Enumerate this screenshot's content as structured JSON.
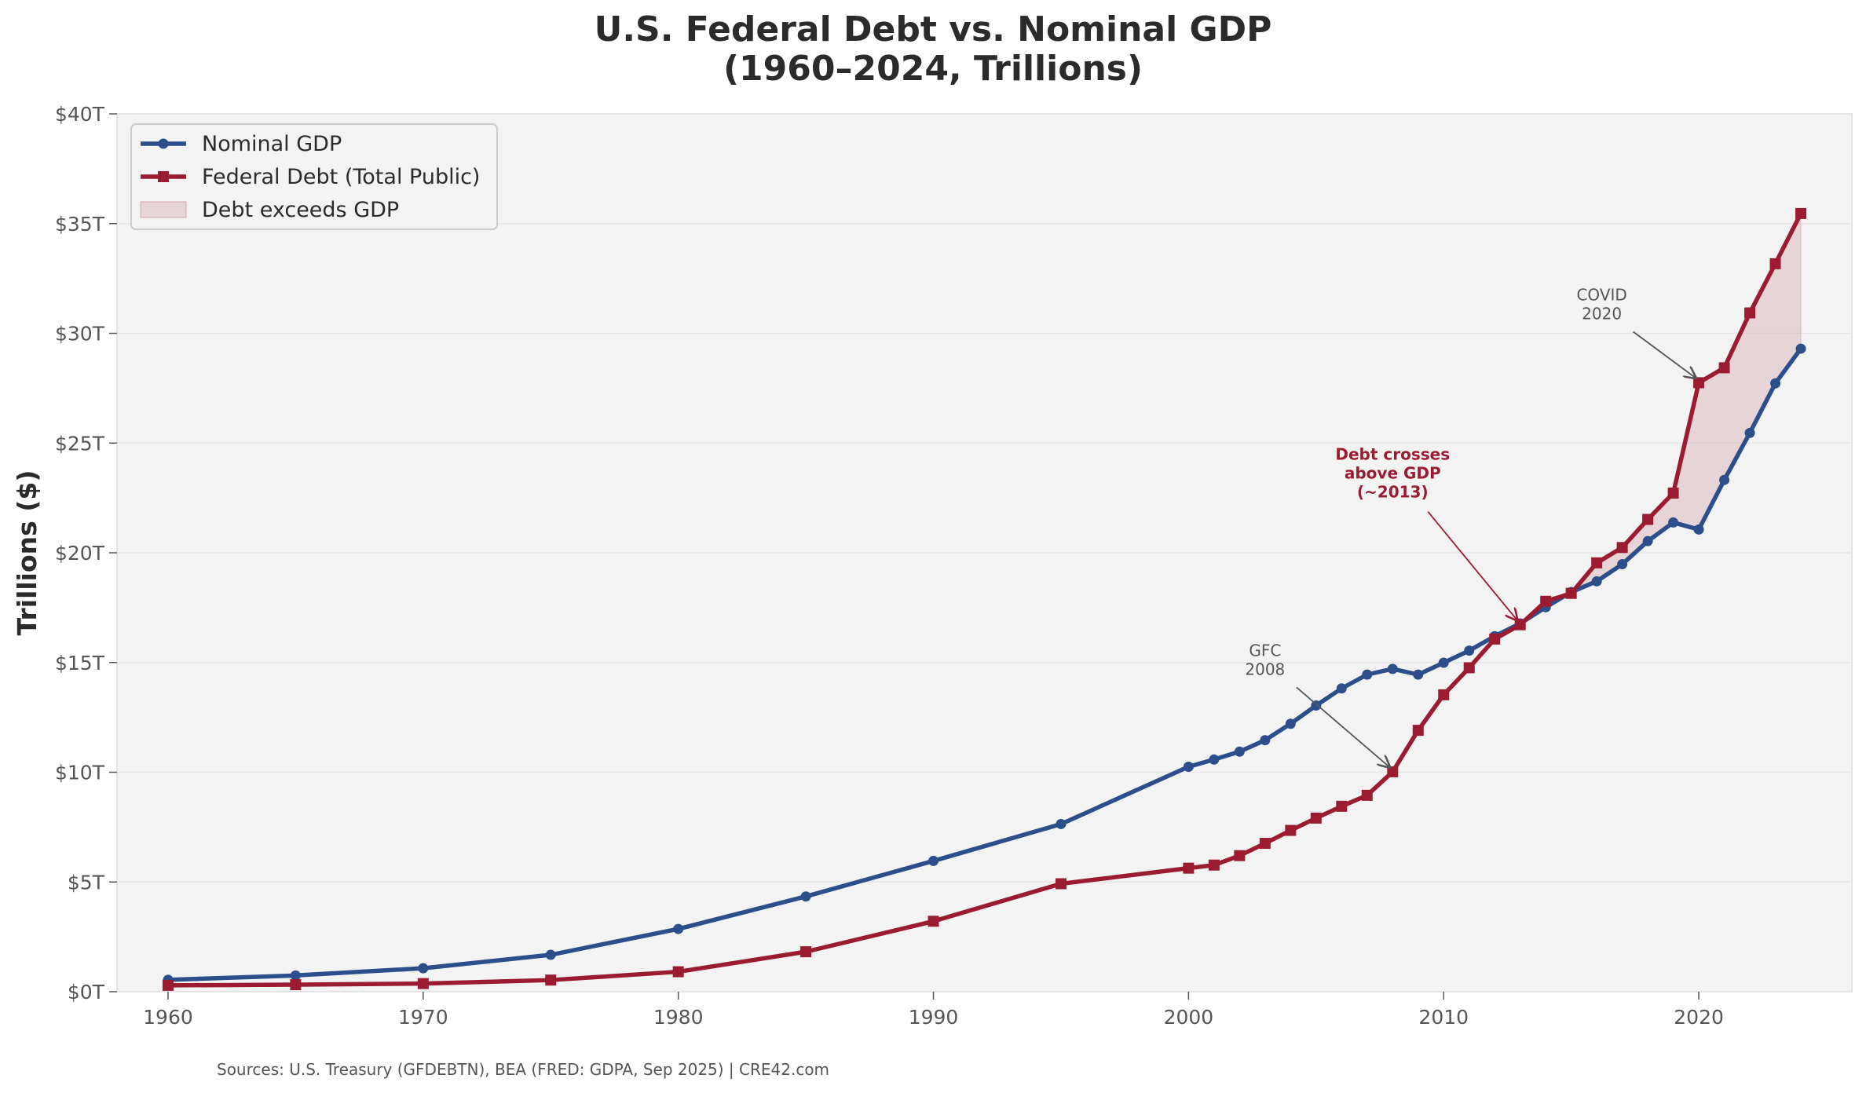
{
  "chart_data": {
    "type": "line",
    "title": [
      "U.S. Federal Debt vs. Nominal GDP",
      "(1960–2024, Trillions)"
    ],
    "ylabel": "Trillions ($)",
    "xlabel": "",
    "xlim": [
      1958,
      2026
    ],
    "ylim": [
      0,
      40
    ],
    "xticks": [
      1960,
      1970,
      1980,
      1990,
      2000,
      2010,
      2020
    ],
    "yticks": [
      0,
      5,
      10,
      15,
      20,
      25,
      30,
      35,
      40
    ],
    "ytick_labels": [
      "$0T",
      "$5T",
      "$10T",
      "$15T",
      "$20T",
      "$25T",
      "$30T",
      "$35T",
      "$40T"
    ],
    "grid": true,
    "legend_position": "top-left",
    "x": [
      1960,
      1965,
      1970,
      1975,
      1980,
      1985,
      1990,
      1995,
      2000,
      2001,
      2002,
      2003,
      2004,
      2005,
      2006,
      2007,
      2008,
      2009,
      2010,
      2011,
      2012,
      2013,
      2014,
      2015,
      2016,
      2017,
      2018,
      2019,
      2020,
      2021,
      2022,
      2023,
      2024
    ],
    "series": [
      {
        "name": "Nominal GDP",
        "color": "#2c4f8c",
        "marker": "circle",
        "values": [
          0.54,
          0.74,
          1.07,
          1.68,
          2.86,
          4.34,
          5.96,
          7.64,
          10.25,
          10.58,
          10.94,
          11.46,
          12.21,
          13.04,
          13.82,
          14.45,
          14.71,
          14.45,
          14.99,
          15.54,
          16.2,
          16.78,
          17.52,
          18.21,
          18.7,
          19.48,
          20.53,
          21.38,
          21.06,
          23.32,
          25.46,
          27.72,
          29.3
        ]
      },
      {
        "name": "Federal Debt (Total Public)",
        "color": "#9b1c31",
        "marker": "square",
        "values": [
          0.29,
          0.32,
          0.37,
          0.53,
          0.91,
          1.82,
          3.21,
          4.92,
          5.63,
          5.77,
          6.2,
          6.76,
          7.35,
          7.91,
          8.45,
          8.95,
          10.02,
          11.91,
          13.53,
          14.76,
          16.07,
          16.72,
          17.79,
          18.15,
          19.54,
          20.24,
          21.52,
          22.72,
          27.75,
          28.43,
          30.93,
          33.17,
          35.46
        ]
      }
    ],
    "fill_label": "Debt exceeds GDP",
    "fill_color": "#c9848f",
    "annotations": [
      {
        "id": "gfc",
        "lines": [
          "GFC",
          "2008"
        ],
        "target_x": 2008,
        "target_y": 10.02,
        "text_x": 2003,
        "text_y": 14.3,
        "style": "gray"
      },
      {
        "id": "crosses",
        "lines": [
          "Debt crosses",
          "above GDP",
          "(~2013)"
        ],
        "target_x": 2013,
        "target_y": 16.72,
        "text_x": 2008,
        "text_y": 22.3,
        "style": "red"
      },
      {
        "id": "covid",
        "lines": [
          "COVID",
          "2020"
        ],
        "target_x": 2020,
        "target_y": 27.75,
        "text_x": 2016.2,
        "text_y": 30.5,
        "style": "gray"
      }
    ]
  },
  "footer": {
    "source": "Sources: U.S. Treasury (GFDEBTN), BEA (FRED: GDPA, Sep 2025)  |  CRE42.com"
  }
}
